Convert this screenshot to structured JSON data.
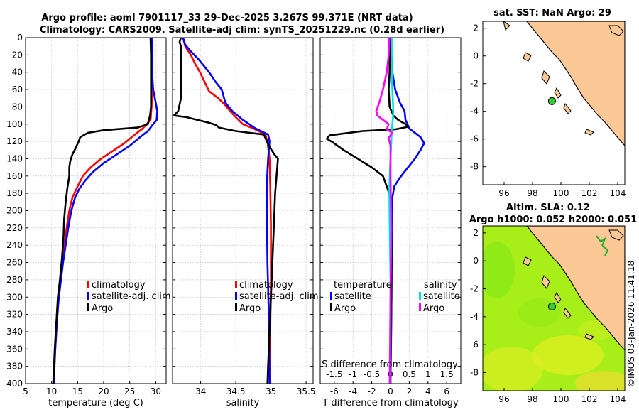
{
  "figure": {
    "title_line1": "Argo profile: aoml 7901117_33 29-Dec-2025 3.267S 99.371E (NRT data)",
    "title_line2": "Climatology: CARS2009. Satellite-adj clim: synTS_20251229.nc (0.28d earlier)",
    "credit": "©IMOS 03-Jan-2026 11:41:18"
  },
  "colors": {
    "climatology": "#ff0000",
    "satellite": "#0000ff",
    "argo": "#000000",
    "t_satellite": "#0000ff",
    "t_argo": "#000000",
    "s_satellite": "#00e0e0",
    "s_argo": "#ff00ff",
    "land": "#fcc896",
    "sla_field": "#a8ee18",
    "float_marker": "#33cc33"
  },
  "legend_profiles": {
    "climatology": "climatology",
    "satellite": "satellite-adj. clim",
    "argo": "Argo"
  },
  "legend_diff": {
    "temperature": "temperature",
    "salinity": "salinity",
    "t_satellite": "satellite",
    "t_argo": "Argo",
    "s_satellite": "satellite",
    "s_argo": "Argo"
  },
  "chart_data": [
    {
      "type": "line",
      "id": "temperature",
      "xlabel": "temperature (deg C)",
      "ylabel": "",
      "xlim": [
        5,
        32
      ],
      "ylim": [
        400,
        0
      ],
      "xticks": [
        5,
        10,
        15,
        20,
        25,
        30
      ],
      "yticks": [
        0,
        20,
        40,
        60,
        80,
        100,
        120,
        140,
        160,
        180,
        200,
        220,
        240,
        260,
        280,
        300,
        320,
        340,
        360,
        380,
        400
      ],
      "grid": true,
      "series": [
        {
          "name": "climatology",
          "points": [
            [
              29.2,
              0
            ],
            [
              29.3,
              20
            ],
            [
              29.3,
              40
            ],
            [
              29.3,
              60
            ],
            [
              29.2,
              80
            ],
            [
              29.0,
              95
            ],
            [
              27.5,
              105
            ],
            [
              26,
              112
            ],
            [
              24,
              122
            ],
            [
              22,
              130
            ],
            [
              19.5,
              140
            ],
            [
              17.5,
              150
            ],
            [
              16,
              160
            ],
            [
              15,
              172
            ],
            [
              14,
              185
            ],
            [
              13.4,
              200
            ],
            [
              12.9,
              220
            ],
            [
              12.5,
              240
            ],
            [
              12.1,
              260
            ],
            [
              11.7,
              280
            ],
            [
              11.3,
              300
            ],
            [
              11.0,
              330
            ],
            [
              10.7,
              360
            ],
            [
              10.4,
              400
            ]
          ]
        },
        {
          "name": "satellite-adj. clim",
          "points": [
            [
              29.2,
              0
            ],
            [
              29.3,
              20
            ],
            [
              29.3,
              40
            ],
            [
              29.5,
              60
            ],
            [
              30.0,
              75
            ],
            [
              30.3,
              85
            ],
            [
              30.2,
              95
            ],
            [
              29.5,
              100
            ],
            [
              28.5,
              108
            ],
            [
              27,
              115
            ],
            [
              25,
              125
            ],
            [
              22.5,
              135
            ],
            [
              20,
              145
            ],
            [
              18,
              155
            ],
            [
              16.5,
              165
            ],
            [
              15.3,
              175
            ],
            [
              14.5,
              185
            ],
            [
              13.8,
              200
            ],
            [
              13.2,
              220
            ],
            [
              12.7,
              240
            ],
            [
              12.2,
              260
            ],
            [
              11.8,
              280
            ],
            [
              11.4,
              300
            ],
            [
              11.0,
              330
            ],
            [
              10.7,
              360
            ],
            [
              10.4,
              400
            ]
          ]
        },
        {
          "name": "Argo",
          "points": [
            [
              29.0,
              0
            ],
            [
              29.1,
              20
            ],
            [
              29.1,
              40
            ],
            [
              29.1,
              60
            ],
            [
              29.1,
              80
            ],
            [
              28.9,
              90
            ],
            [
              28.5,
              100
            ],
            [
              26.5,
              104
            ],
            [
              20,
              107
            ],
            [
              17,
              110
            ],
            [
              15.5,
              115
            ],
            [
              15.2,
              120
            ],
            [
              14.6,
              128
            ],
            [
              14.0,
              135
            ],
            [
              13.6,
              142
            ],
            [
              13.4,
              150
            ],
            [
              13.4,
              160
            ],
            [
              13.0,
              175
            ],
            [
              12.7,
              190
            ],
            [
              12.4,
              210
            ],
            [
              12.3,
              230
            ],
            [
              12.0,
              255
            ],
            [
              11.6,
              280
            ],
            [
              11.2,
              300
            ],
            [
              10.9,
              330
            ],
            [
              10.6,
              360
            ],
            [
              10.3,
              400
            ]
          ]
        }
      ]
    },
    {
      "type": "line",
      "id": "salinity",
      "xlabel": "salinity",
      "xlim": [
        33.6,
        35.6
      ],
      "ylim": [
        400,
        0
      ],
      "xticks": [
        34,
        34.5,
        35,
        35.5
      ],
      "xticklabels": [
        "34",
        "34.5",
        "35",
        "35.5"
      ],
      "grid": true,
      "series": [
        {
          "name": "climatology",
          "points": [
            [
              33.75,
              0
            ],
            [
              33.78,
              10
            ],
            [
              33.86,
              20
            ],
            [
              33.92,
              30
            ],
            [
              33.99,
              40
            ],
            [
              34.05,
              50
            ],
            [
              34.12,
              62
            ],
            [
              34.25,
              70
            ],
            [
              34.35,
              78
            ],
            [
              34.42,
              85
            ],
            [
              34.5,
              92
            ],
            [
              34.6,
              100
            ],
            [
              34.75,
              105
            ],
            [
              34.92,
              112
            ],
            [
              34.95,
              120
            ],
            [
              34.98,
              140
            ],
            [
              34.99,
              170
            ],
            [
              35.0,
              220
            ],
            [
              35.0,
              280
            ],
            [
              34.99,
              340
            ],
            [
              34.98,
              400
            ]
          ]
        },
        {
          "name": "satellite-adj. clim",
          "points": [
            [
              33.75,
              0
            ],
            [
              33.78,
              8
            ],
            [
              33.85,
              15
            ],
            [
              33.97,
              25
            ],
            [
              34.12,
              40
            ],
            [
              34.22,
              52
            ],
            [
              34.3,
              60
            ],
            [
              34.35,
              75
            ],
            [
              34.45,
              85
            ],
            [
              34.6,
              95
            ],
            [
              34.78,
              105
            ],
            [
              34.96,
              112
            ],
            [
              34.98,
              120
            ],
            [
              34.96,
              140
            ],
            [
              34.94,
              170
            ],
            [
              34.94,
              200
            ],
            [
              34.95,
              260
            ],
            [
              34.97,
              320
            ],
            [
              34.98,
              400
            ]
          ]
        },
        {
          "name": "Argo",
          "points": [
            [
              33.72,
              0
            ],
            [
              33.7,
              5
            ],
            [
              33.72,
              10
            ],
            [
              33.72,
              40
            ],
            [
              33.72,
              70
            ],
            [
              33.68,
              85
            ],
            [
              33.62,
              90
            ],
            [
              33.8,
              92
            ],
            [
              33.95,
              95
            ],
            [
              34.1,
              98
            ],
            [
              34.22,
              101
            ],
            [
              34.26,
              104
            ],
            [
              34.5,
              108
            ],
            [
              34.9,
              112
            ],
            [
              34.97,
              125
            ],
            [
              35.05,
              135
            ],
            [
              35.1,
              140
            ],
            [
              35.08,
              160
            ],
            [
              35.06,
              180
            ],
            [
              35.04,
              220
            ],
            [
              35.02,
              260
            ],
            [
              35.0,
              300
            ],
            [
              34.98,
              340
            ],
            [
              34.96,
              380
            ],
            [
              34.95,
              400
            ]
          ]
        }
      ]
    },
    {
      "type": "line",
      "id": "difference",
      "xlabel": "T difference from climatology",
      "x2label": "S difference from climatology",
      "xlim": [
        -7.5,
        7.5
      ],
      "ylim": [
        400,
        0
      ],
      "xticks": [
        -6,
        -4,
        -2,
        0,
        2,
        4,
        6
      ],
      "xticklabels": [
        "-6",
        "-4",
        "-2",
        "0",
        "2",
        "4",
        "6"
      ],
      "x2ticks": [
        -1.5,
        -1,
        -0.5,
        0,
        0.5,
        1,
        1.5
      ],
      "x2ticklabels": [
        "-1.5",
        "-1",
        "-0.5",
        "0",
        "0.5",
        "1",
        "1.5"
      ],
      "x2lim": [
        -1.875,
        1.875
      ],
      "grid": true,
      "series": [
        {
          "name": "temperature satellite",
          "axis": "T",
          "points": [
            [
              0,
              0
            ],
            [
              0.1,
              20
            ],
            [
              0.2,
              40
            ],
            [
              0.5,
              60
            ],
            [
              1.0,
              75
            ],
            [
              1.5,
              85
            ],
            [
              1.6,
              95
            ],
            [
              2.0,
              105
            ],
            [
              3.2,
              115
            ],
            [
              3.6,
              122
            ],
            [
              3.2,
              130
            ],
            [
              2.6,
              140
            ],
            [
              1.5,
              155
            ],
            [
              1.0,
              162
            ],
            [
              0.4,
              172
            ],
            [
              0.2,
              185
            ],
            [
              0.15,
              220
            ],
            [
              0.1,
              300
            ],
            [
              0.05,
              360
            ],
            [
              0,
              400
            ]
          ]
        },
        {
          "name": "temperature Argo",
          "axis": "T",
          "points": [
            [
              -0.1,
              0
            ],
            [
              -0.1,
              40
            ],
            [
              -0.2,
              60
            ],
            [
              -0.1,
              80
            ],
            [
              0.3,
              90
            ],
            [
              0.8,
              95
            ],
            [
              1.6,
              100
            ],
            [
              1.9,
              103
            ],
            [
              0.5,
              106
            ],
            [
              -3.0,
              108
            ],
            [
              -6.5,
              113
            ],
            [
              -6.8,
              117
            ],
            [
              -6.3,
              120
            ],
            [
              -5,
              130
            ],
            [
              -3.5,
              140
            ],
            [
              -2,
              150
            ],
            [
              -0.8,
              160
            ],
            [
              -0.3,
              175
            ],
            [
              0,
              185
            ],
            [
              0.1,
              220
            ],
            [
              0.1,
              300
            ],
            [
              0,
              400
            ]
          ]
        },
        {
          "name": "salinity satellite",
          "axis": "S",
          "points": [
            [
              0.03,
              0
            ],
            [
              0.03,
              40
            ],
            [
              0.05,
              60
            ],
            [
              0.07,
              80
            ],
            [
              0.07,
              90
            ],
            [
              0.05,
              100
            ],
            [
              0.03,
              110
            ],
            [
              0.02,
              120
            ],
            [
              0.0,
              140
            ],
            [
              -0.02,
              160
            ],
            [
              -0.03,
              180
            ],
            [
              -0.02,
              220
            ],
            [
              0.0,
              280
            ],
            [
              0.0,
              400
            ]
          ]
        },
        {
          "name": "salinity Argo",
          "axis": "S",
          "points": [
            [
              -0.03,
              0
            ],
            [
              -0.05,
              20
            ],
            [
              -0.1,
              40
            ],
            [
              -0.2,
              60
            ],
            [
              -0.3,
              75
            ],
            [
              -0.38,
              85
            ],
            [
              -0.35,
              90
            ],
            [
              -0.2,
              95
            ],
            [
              -0.05,
              100
            ],
            [
              -0.1,
              106
            ],
            [
              0.05,
              110
            ],
            [
              -0.05,
              116
            ],
            [
              0.0,
              125
            ],
            [
              0.0,
              160
            ],
            [
              0.02,
              220
            ],
            [
              0.0,
              300
            ],
            [
              -0.02,
              400
            ]
          ]
        }
      ]
    },
    {
      "type": "map",
      "id": "sst_map",
      "title": "sat. SST: NaN Argo: 29",
      "xlim": [
        94.5,
        104.5
      ],
      "ylim": [
        -9.3,
        2.5
      ],
      "xticks": [
        96,
        98,
        100,
        102,
        104
      ],
      "yticks": [
        2,
        0,
        -2,
        -4,
        -6,
        -8
      ],
      "float_position": [
        99.371,
        -3.267
      ]
    },
    {
      "type": "map",
      "id": "sla_map",
      "title_line1": "Altim. SLA: 0.12",
      "title_line2": "Argo h1000: 0.052 h2000: 0.051",
      "xlim": [
        94.5,
        104.5
      ],
      "ylim": [
        -9.3,
        2.5
      ],
      "xticks": [
        96,
        98,
        100,
        102,
        104
      ],
      "yticks": [
        2,
        0,
        -2,
        -4,
        -6,
        -8
      ],
      "float_position": [
        99.371,
        -3.267
      ]
    }
  ]
}
